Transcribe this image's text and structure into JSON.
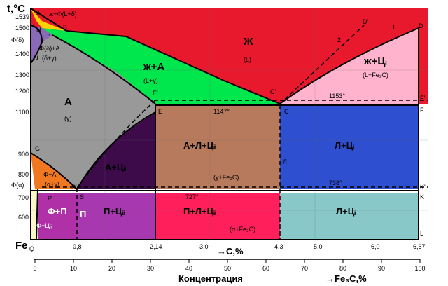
{
  "axis": {
    "y_title": "t,°C",
    "x_title": "→C,%",
    "x2_title": "Концентрация",
    "x3_title": "→Fe₃C,%",
    "origin_label": "Fe",
    "y_ticks": [
      "1539",
      "1500",
      "1400",
      "1300",
      "1200",
      "1100",
      "900",
      "800",
      "700",
      "600"
    ],
    "y_special": [
      "Φ(δ)",
      "Φ(α)"
    ],
    "x_ticks": [
      "0,8",
      "2,14",
      "3,0",
      "4,3",
      "5,0",
      "6,0",
      "6,67"
    ],
    "bottom_ticks": [
      "0",
      "10",
      "20",
      "30",
      "40",
      "50",
      "60",
      "70",
      "80",
      "90",
      "100"
    ]
  },
  "points": {
    "A": "A",
    "B": "B",
    "H": "H",
    "J": "J",
    "N": "N",
    "E": "E",
    "E1": "E'",
    "C": "C",
    "C1": "C'",
    "D": "D",
    "D1": "D'",
    "F": "F",
    "F1": "F'",
    "G": "G",
    "S": "S",
    "S1": "S'",
    "P": "P",
    "Q": "Q",
    "K": "K",
    "K1": "K'",
    "L": "L",
    "L_line": "Л",
    "n1": "1",
    "n2": "2"
  },
  "temps": {
    "t1147": "1147°",
    "t1153": "1153°",
    "t727": "727°",
    "t738": "738°"
  },
  "regions": {
    "liquid": {
      "label": "Ж",
      "sub": "(L)"
    },
    "liq_aust": {
      "label": "ж+А",
      "sub": "(L+γ)"
    },
    "liq_cem": {
      "label": "ж+Цᵢ",
      "sub": "(L+Fe₃C)"
    },
    "top_small": {
      "label": "ж+Φ(L+δ)"
    },
    "delta": {
      "label": "Φ(δ)+A",
      "sub": "(δ+γ)"
    },
    "aust": {
      "label": "A",
      "sub": "(γ)"
    },
    "aust_cem": {
      "label": "A+Цᵢᵢ"
    },
    "ledeb_hi": {
      "label": "A+Л+Цᵢᵢ",
      "sub": "(γ+Fe₃C)"
    },
    "ledeb_i_hi": {
      "label": "Л+Цᵢ"
    },
    "ferr_aust": {
      "label": "Φ+A",
      "sub": "(α+γ)"
    },
    "ferr_perl": {
      "label": "Φ+П"
    },
    "perl": {
      "label": "П"
    },
    "perl_cem": {
      "label": "П+Цᵢᵢ"
    },
    "ledeb_lo": {
      "label": "П+Л+Цᵢᵢ",
      "sub": "(α+Fe₃C)"
    },
    "ledeb_i_lo": {
      "label": "Л+Цᵢ"
    },
    "ferr_col": {
      "label": "Φ+Цᵢᵢᵢ"
    }
  },
  "colors": {
    "liquid": "#e8192c",
    "liq_aust": "#00e64d",
    "liq_cem": "#ffb3cc",
    "aust": "#999999",
    "aust_cem": "#3d0a4a",
    "ledeb_hi": "#b87a5c",
    "ledeb_i_hi": "#2e4fd0",
    "ferr_aust": "#f07820",
    "ferr_perl": "#b030a8",
    "perl_cem": "#a838b0",
    "ledeb_lo": "#ff1f5a",
    "ledeb_i_lo": "#88c8c8",
    "ferrite": "#fff7c8",
    "top_small": "#ffd300",
    "delta": "#8a6ab8"
  }
}
